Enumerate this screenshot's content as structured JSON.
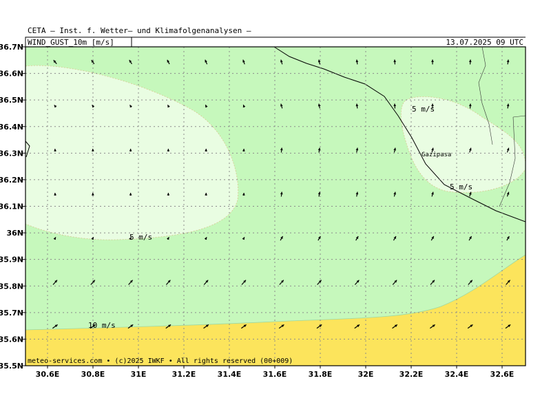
{
  "header": {
    "title": "CETA — Inst. f. Wetter— und Klimafolgenanalysen —",
    "field": "WIND_GUST_10m [m/s]",
    "valid": "13.07.2025 09 UTC"
  },
  "map": {
    "y_labels": [
      "35.5N",
      "35.6N",
      "35.7N",
      "35.8N",
      "35.9N",
      "36N",
      "36.1N",
      "36.2N",
      "36.3N",
      "36.4N",
      "36.5N",
      "36.6N",
      "36.7N"
    ],
    "x_labels": [
      "30.6E",
      "30.8E",
      "31E",
      "31.2E",
      "31.4E",
      "31.6E",
      "31.8E",
      "32E",
      "32.2E",
      "32.4E",
      "32.6E"
    ],
    "contour_labels": [
      "5 m/s",
      "5 m/s",
      "5 m/s",
      "10 m/s"
    ],
    "places": [
      "Gazipasa"
    ]
  },
  "footer": "meteo-services.com • (c)2025 IWKF • All rights reserved (00+009)"
}
